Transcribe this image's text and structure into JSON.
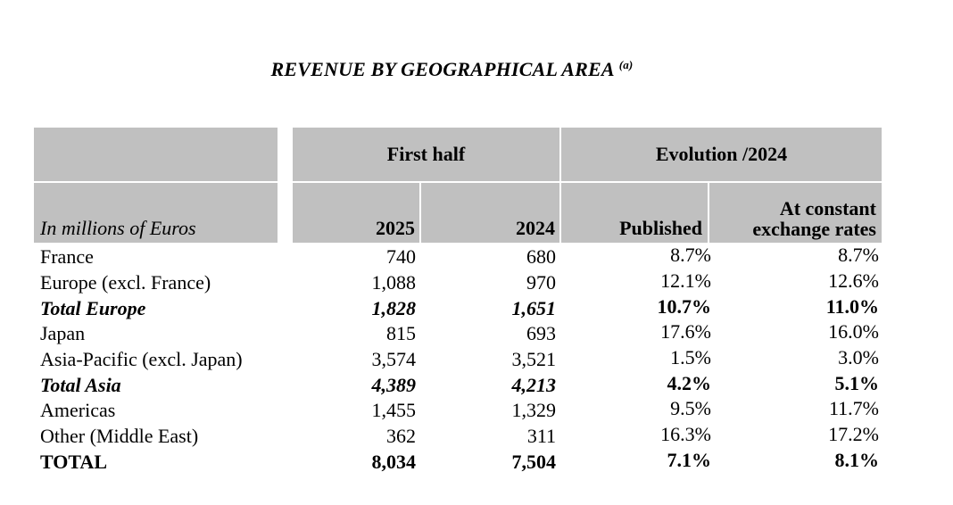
{
  "title": {
    "text": "REVENUE BY GEOGRAPHICAL AREA",
    "footnote": "(a)"
  },
  "colors": {
    "header_bg": "#c0c0c0",
    "divider": "#ffffff",
    "text": "#000000"
  },
  "table": {
    "unit_label": "In millions of Euros",
    "groups": {
      "first_half": "First half",
      "evolution": "Evolution /2024"
    },
    "columns": {
      "y2025": "2025",
      "y2024": "2024",
      "published": "Published",
      "constant": "At constant exchange rates"
    },
    "rows": [
      {
        "label": "France",
        "v2025": "740",
        "v2024": "680",
        "published": "8.7%",
        "constant": "8.7%",
        "style": "normal"
      },
      {
        "label": "Europe (excl. France)",
        "v2025": "1,088",
        "v2024": "970",
        "published": "12.1%",
        "constant": "12.6%",
        "style": "normal"
      },
      {
        "label": "Total Europe",
        "v2025": "1,828",
        "v2024": "1,651",
        "published": "10.7%",
        "constant": "11.0%",
        "style": "subtotal"
      },
      {
        "label": "Japan",
        "v2025": "815",
        "v2024": "693",
        "published": "17.6%",
        "constant": "16.0%",
        "style": "normal"
      },
      {
        "label": "Asia-Pacific (excl. Japan)",
        "v2025": "3,574",
        "v2024": "3,521",
        "published": "1.5%",
        "constant": "3.0%",
        "style": "normal"
      },
      {
        "label": "Total Asia",
        "v2025": "4,389",
        "v2024": "4,213",
        "published": "4.2%",
        "constant": "5.1%",
        "style": "subtotal"
      },
      {
        "label": "Americas",
        "v2025": "1,455",
        "v2024": "1,329",
        "published": "9.5%",
        "constant": "11.7%",
        "style": "normal"
      },
      {
        "label": "Other (Middle East)",
        "v2025": "362",
        "v2024": "311",
        "published": "16.3%",
        "constant": "17.2%",
        "style": "normal"
      },
      {
        "label": "TOTAL",
        "v2025": "8,034",
        "v2024": "7,504",
        "published": "7.1%",
        "constant": "8.1%",
        "style": "total"
      }
    ]
  }
}
